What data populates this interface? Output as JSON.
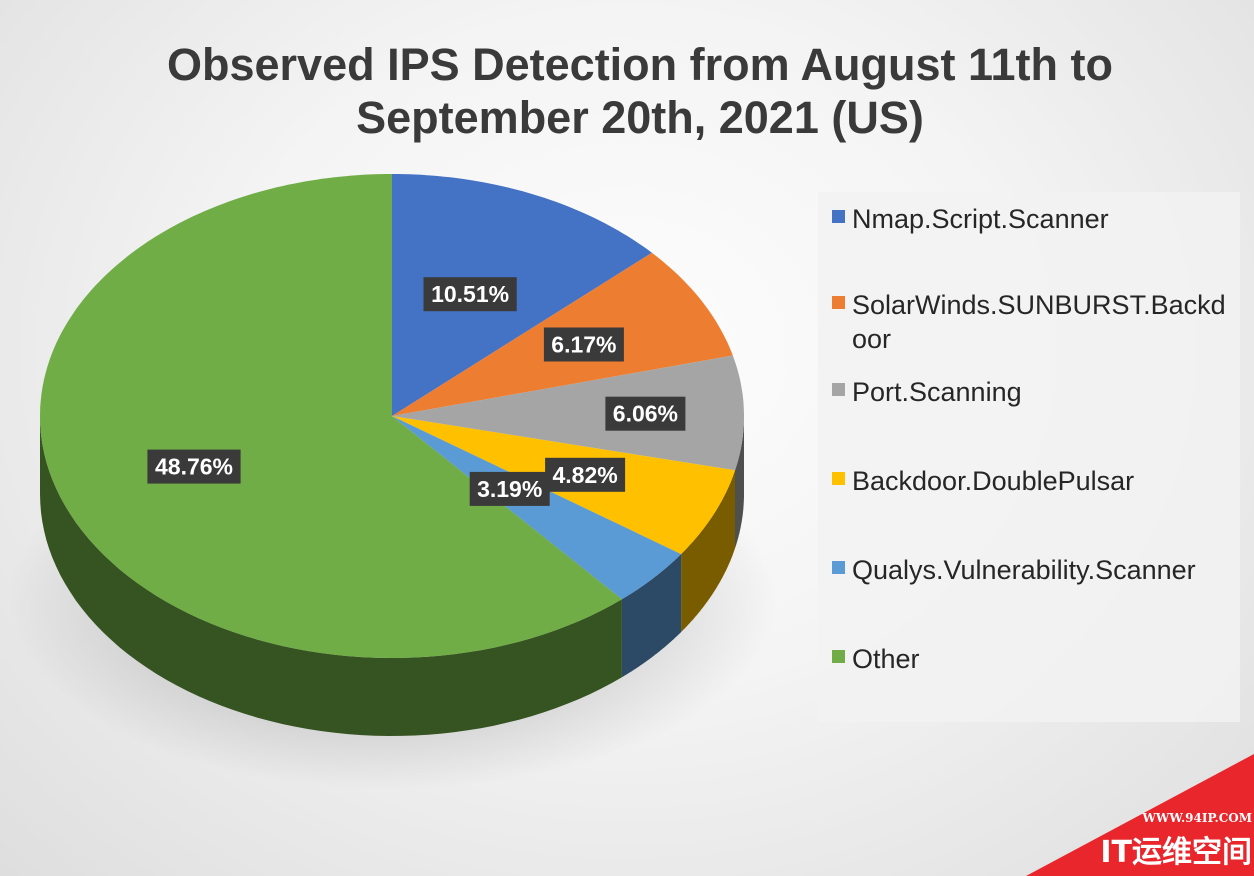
{
  "chart_data": {
    "type": "pie",
    "title": "Observed IPS Detection from August 11th to September 20th, 2021 (US)",
    "slices": [
      {
        "name": "Nmap.Script.Scanner",
        "value": 10.51,
        "label": "10.51%",
        "color": "#4472C4"
      },
      {
        "name": "SolarWinds.SUNBURST.Backdoor",
        "value": 6.17,
        "label": "6.17%",
        "color": "#ED7D31"
      },
      {
        "name": "Port.Scanning",
        "value": 6.06,
        "label": "6.06%",
        "color": "#A5A5A5"
      },
      {
        "name": "Backdoor.DoublePulsar",
        "value": 4.82,
        "label": "4.82%",
        "color": "#FFC000"
      },
      {
        "name": "Qualys.Vulnerability.Scanner",
        "value": 3.19,
        "label": "3.19%",
        "color": "#5B9BD5"
      },
      {
        "name": "Other",
        "value": 48.76,
        "label": "48.76%",
        "color": "#70AD47"
      }
    ],
    "legend_position": "right",
    "style": "3d-pie"
  },
  "watermark": {
    "url_text": "WWW.94IP.COM",
    "brand_text": "IT运维空间",
    "color": "#E8262C"
  }
}
